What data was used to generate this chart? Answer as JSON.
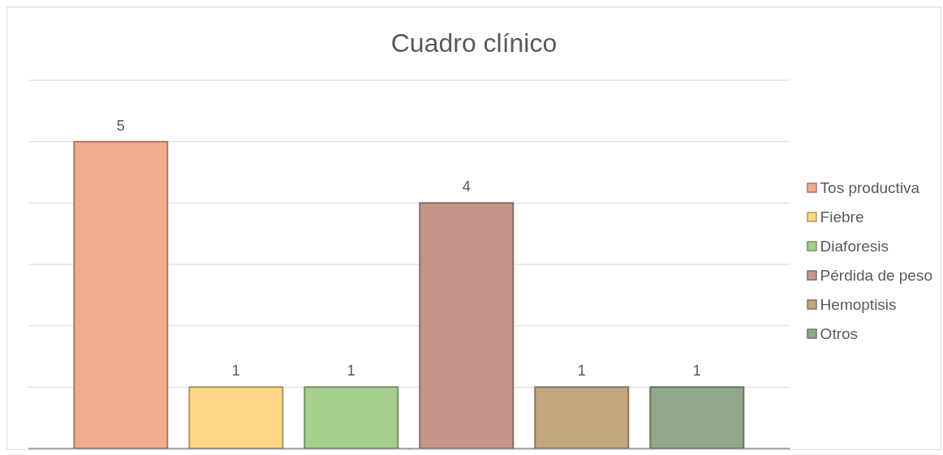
{
  "chart_data": {
    "type": "bar",
    "title": "Cuadro clínico",
    "categories": [
      null
    ],
    "series": [
      {
        "name": "Tos productiva",
        "color": "#f4ab8c",
        "values": [
          5
        ]
      },
      {
        "name": "Fiebre",
        "color": "#ffd685",
        "values": [
          1
        ]
      },
      {
        "name": "Diaforesis",
        "color": "#a6cf8c",
        "values": [
          1
        ]
      },
      {
        "name": "Pérdida de peso",
        "color": "#c4968a",
        "values": [
          4
        ]
      },
      {
        "name": "Hemoptisis",
        "color": "#c2a67e",
        "values": [
          1
        ]
      },
      {
        "name": "Otros",
        "color": "#90a88a",
        "values": [
          1
        ]
      }
    ],
    "ylim": [
      0,
      6
    ],
    "yticks": [
      {
        "value": 0,
        "label": null
      },
      {
        "value": 1,
        "label": null
      },
      {
        "value": 2,
        "label": null
      },
      {
        "value": 3,
        "label": null
      },
      {
        "value": 4,
        "label": null
      },
      {
        "value": 5,
        "label": null
      },
      {
        "value": 6,
        "label": null
      }
    ],
    "grid": "y",
    "legend": "right",
    "data_labels": true
  }
}
